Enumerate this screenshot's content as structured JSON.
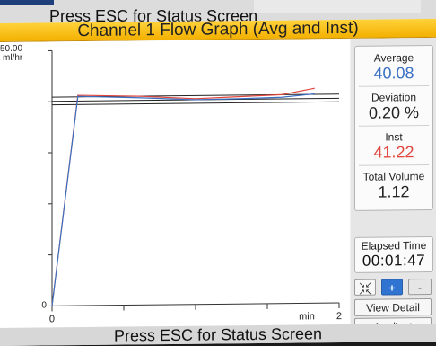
{
  "header": {
    "top_message": "Press ESC for Status Screen",
    "title": "Channel 1 Flow Graph (Avg and Inst)"
  },
  "chart_data": {
    "type": "line",
    "ylabel": "ml/hr",
    "y_max_label": "50.00",
    "y_min_label": "0",
    "x_min_label": "0",
    "x_max_label": "2",
    "xlabel": "min",
    "ylim": [
      0,
      50
    ],
    "xlim": [
      0,
      2
    ],
    "series": [
      {
        "color": "#e0463d",
        "x": [
          0.0,
          0.18,
          0.6,
          1.0,
          1.3,
          1.6,
          1.83
        ],
        "y": [
          0.0,
          41.2,
          40.9,
          40.3,
          40.6,
          40.9,
          42.1
        ]
      },
      {
        "color": "#3a6fc1",
        "x": [
          0.0,
          0.18,
          0.6,
          1.0,
          1.3,
          1.6,
          1.83
        ],
        "y": [
          0.0,
          41.0,
          40.6,
          40.1,
          40.2,
          40.4,
          41.0
        ]
      }
    ],
    "reference_lines": [
      40.9,
      40.08,
      39.4
    ]
  },
  "stats": {
    "average_label": "Average",
    "average_value": "40.08",
    "deviation_label": "Deviation",
    "deviation_value": "0.20 %",
    "inst_label": "Inst",
    "inst_value": "41.22",
    "total_volume_label": "Total Volume",
    "total_volume_value": "1.12"
  },
  "timer": {
    "label": "Elapsed Time",
    "value": "00:01:47"
  },
  "controls": {
    "plus": "+",
    "minus": "-",
    "view_detail": "View Detail",
    "ave_inst": "Ave/Inst"
  },
  "footer": {
    "message": "Press ESC for Status Screen"
  },
  "colors": {
    "title_bar": "#f3b000",
    "average": "#3a6fc1",
    "inst": "#e0463d"
  }
}
